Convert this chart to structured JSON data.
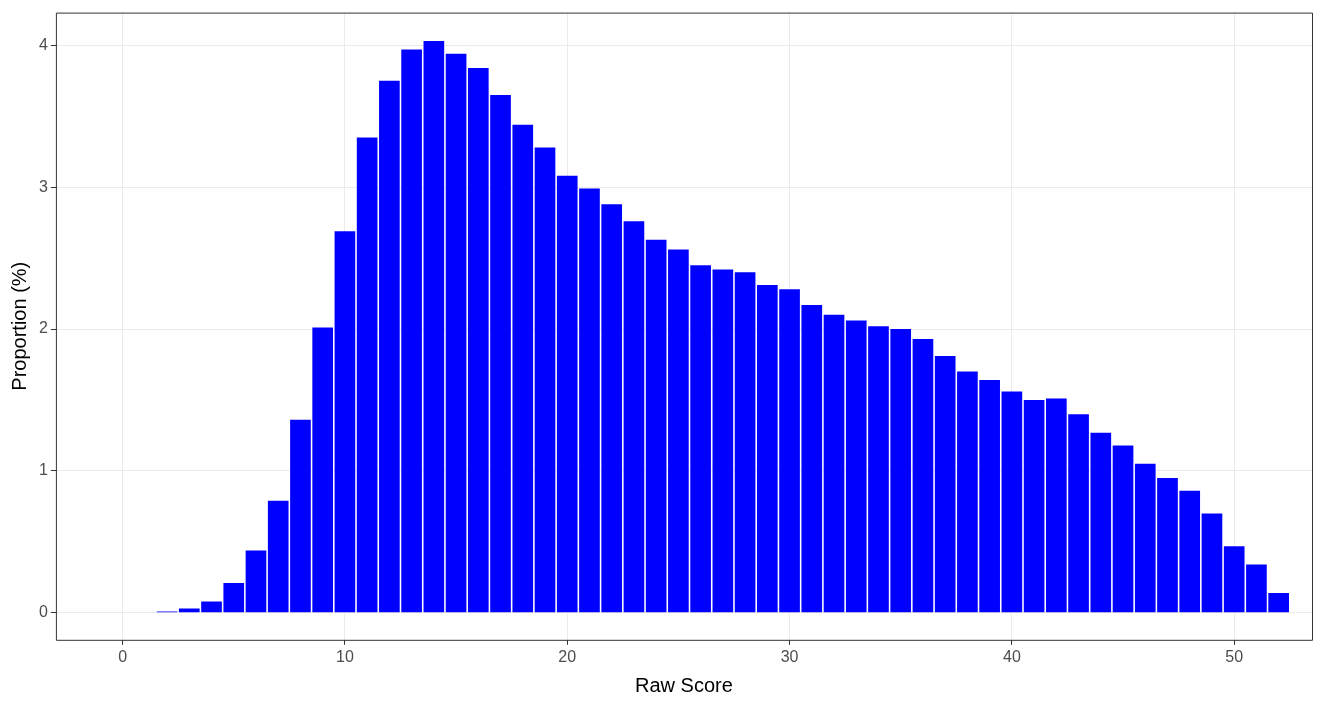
{
  "chart_data": {
    "type": "histogram",
    "xlabel": "Raw Score",
    "ylabel": "Proportion (%)",
    "color": "#0000ff",
    "bins": [
      -0.5,
      0.5,
      1.5,
      2.5,
      3.5,
      4.5,
      5.5,
      6.5,
      7.5,
      8.5,
      9.5,
      10.5,
      11.5,
      12.5,
      13.5,
      14.5,
      15.5,
      16.5,
      17.5,
      18.5,
      19.5,
      20.5,
      21.5,
      22.5,
      23.5,
      24.5,
      25.5,
      26.5,
      27.5,
      28.5,
      29.5,
      30.5,
      31.5,
      32.5,
      33.5,
      34.5,
      35.5,
      36.5,
      37.5,
      38.5,
      39.5,
      40.5,
      41.5,
      42.5,
      43.5,
      44.5,
      45.5,
      46.5,
      47.5,
      48.5,
      49.5,
      50.5,
      51.5,
      52.5
    ],
    "values": [
      0.005,
      0.005,
      0.01,
      0.03,
      0.08,
      0.21,
      0.44,
      0.79,
      1.36,
      2.01,
      2.69,
      3.35,
      3.75,
      3.97,
      4.03,
      3.94,
      3.84,
      3.65,
      3.44,
      3.28,
      3.08,
      2.99,
      2.88,
      2.76,
      2.63,
      2.56,
      2.45,
      2.42,
      2.4,
      2.31,
      2.28,
      2.17,
      2.1,
      2.06,
      2.02,
      2.0,
      1.93,
      1.81,
      1.7,
      1.64,
      1.56,
      1.5,
      1.51,
      1.4,
      1.27,
      1.18,
      1.05,
      0.95,
      0.86,
      0.7,
      0.47,
      0.34,
      0.14
    ],
    "xlim": [
      -3,
      53.5
    ],
    "xticks": [
      0,
      10,
      20,
      30,
      40,
      50
    ],
    "ylim": [
      -0.19,
      4.23
    ],
    "yticks": [
      0,
      1,
      2,
      3,
      4
    ],
    "grid": true
  }
}
